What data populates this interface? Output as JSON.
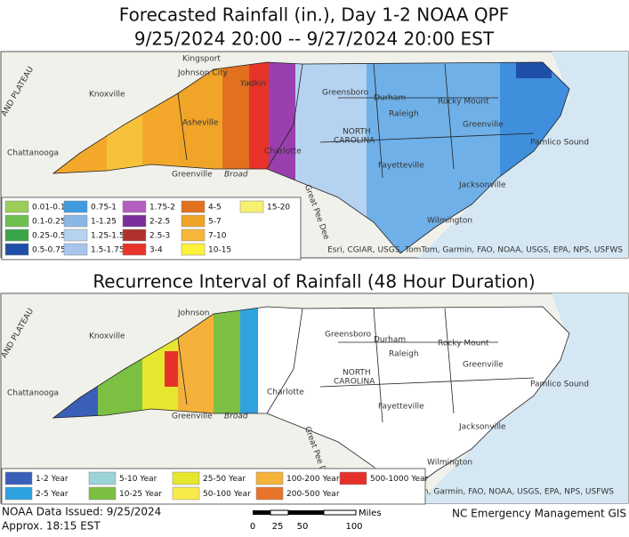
{
  "title": "Forecasted Rainfall (in.), Day 1-2 NOAA QPF",
  "subtitle": "9/25/2024 20:00 -- 9/27/2024 20:00 EST",
  "map1": {
    "places": [
      "Kingsport",
      "Johnson City",
      "Knoxville",
      "Asheville",
      "Chattanooga",
      "Greenville",
      "Broad",
      "Charlotte",
      "Yadkin",
      "Greensboro",
      "Durham",
      "Raleigh",
      "Rocky Mount",
      "Greenville",
      "Fayetteville",
      "Jacksonville",
      "Wilmington",
      "NORTH",
      "CAROLINA",
      "Pamlico Sound",
      "Great Pee Dee",
      "AND PLATEAU"
    ],
    "attribution": "Esri, CGIAR, USGS, TomTom, Garmin, FAO, NOAA, USGS, EPA, NPS, USFWS",
    "legend": [
      {
        "label": "0.01-0.1",
        "color": "#9ccc5a"
      },
      {
        "label": "0.1-0.25",
        "color": "#6fbf4e"
      },
      {
        "label": "0.25-0.5",
        "color": "#3aa548"
      },
      {
        "label": "0.5-0.75",
        "color": "#1f4fa8"
      },
      {
        "label": "0.75-1",
        "color": "#3f9be0"
      },
      {
        "label": "1-1.25",
        "color": "#8ab8e6"
      },
      {
        "label": "1.25-1.5",
        "color": "#b5d3f0"
      },
      {
        "label": "1.5-1.75",
        "color": "#a8c6ec"
      },
      {
        "label": "1.75-2",
        "color": "#b25fc0"
      },
      {
        "label": "2-2.5",
        "color": "#7a2d9a"
      },
      {
        "label": "2.5-3",
        "color": "#b0322c"
      },
      {
        "label": "3-4",
        "color": "#e8332a"
      },
      {
        "label": "4-5",
        "color": "#e2701f"
      },
      {
        "label": "5-7",
        "color": "#f0a428"
      },
      {
        "label": "7-10",
        "color": "#f6b63a"
      },
      {
        "label": "10-15",
        "color": "#fff23a"
      },
      {
        "label": "15-20",
        "color": "#f8f070"
      }
    ]
  },
  "title2": "Recurrence Interval of Rainfall (48 Hour Duration)",
  "map2": {
    "places": [
      "Johnson",
      "Knoxville",
      "Chattanooga",
      "Greenville",
      "Broad",
      "Charlotte",
      "Greensboro",
      "Durham",
      "Raleigh",
      "Rocky Mount",
      "Greenville",
      "NORTH",
      "CAROLINA",
      "Pamlico Sound",
      "Fayetteville",
      "Jacksonville",
      "Wilmington",
      "Great Pee Dee",
      "AND PLATEAU"
    ],
    "attribution": "TomTom, Garmin, FAO, NOAA, USGS, EPA, NPS, USFWS",
    "legend": [
      {
        "label": "1-2 Year",
        "color": "#3a5fb8"
      },
      {
        "label": "2-5 Year",
        "color": "#2fa3e0"
      },
      {
        "label": "5-10 Year",
        "color": "#9ad3d8"
      },
      {
        "label": "10-25 Year",
        "color": "#7cc043"
      },
      {
        "label": "25-50 Year",
        "color": "#e6e62e"
      },
      {
        "label": "50-100 Year",
        "color": "#f7ea4a"
      },
      {
        "label": "100-200 Year",
        "color": "#f5b23a"
      },
      {
        "label": "200-500 Year",
        "color": "#e8732a"
      },
      {
        "label": "500-1000 Year",
        "color": "#e6312b"
      }
    ]
  },
  "footer": {
    "issued": "NOAA Data Issued: 9/25/2024",
    "time": "Approx. 18:15 EST",
    "scale_unit": "Miles",
    "scale_ticks": [
      "0",
      "25",
      "50",
      "100"
    ],
    "credit": "NC Emergency Management GIS"
  }
}
